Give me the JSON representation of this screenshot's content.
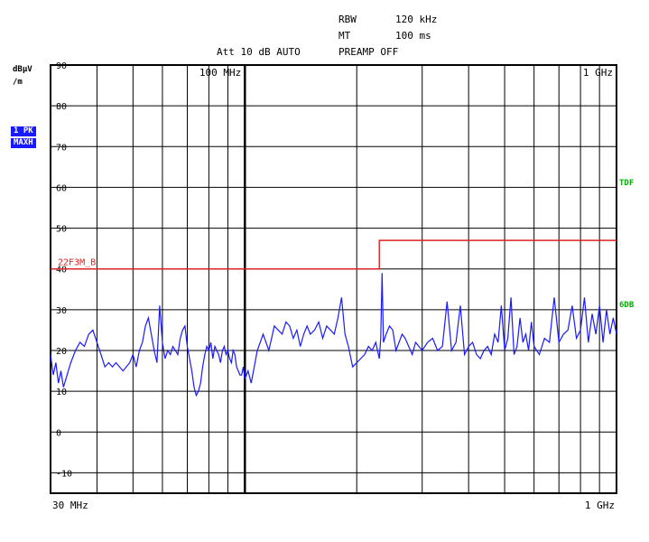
{
  "header": {
    "rbw_label": "RBW",
    "rbw_value": "120 kHz",
    "mt_label": "MT",
    "mt_value": "100 ms",
    "att_line": "Att 10 dB AUTO",
    "preamp": "PREAMP OFF"
  },
  "unit": {
    "line1": "dBµV",
    "line2": "/m"
  },
  "badges": {
    "trace": "1 PK",
    "detector": "MAXH"
  },
  "side_labels": {
    "tdf": "TDF",
    "db": "6DB"
  },
  "colors": {
    "grid": "#000000",
    "trace": "#1a1aff",
    "limit": "#e02020",
    "side": "#00b000",
    "badge_bg": "#1a1aff"
  },
  "chart_data": {
    "type": "line",
    "x_scale": "log",
    "xlim_mhz": [
      30,
      1000
    ],
    "ylim": [
      -15,
      90
    ],
    "y_ticks": [
      90,
      80,
      70,
      60,
      50,
      40,
      30,
      20,
      10,
      0,
      -10
    ],
    "y_tick_labels": [
      "90",
      "80",
      "70",
      "60",
      "50",
      "40",
      "30",
      "20",
      "10",
      "0",
      "-10"
    ],
    "x_min_label": "30 MHz",
    "x_max_label": "1 GHz",
    "top_freq_labels": [
      {
        "freq": 100,
        "text": "100 MHz"
      },
      {
        "freq": 1000,
        "text": "1 GHz"
      }
    ],
    "limit_line": {
      "name": "22F3M_B",
      "segments": [
        {
          "x": [
            30,
            230
          ],
          "y": 40
        },
        {
          "x": [
            230,
            1000
          ],
          "y": 47
        }
      ]
    },
    "series": [
      {
        "x": [
          30,
          30.5,
          31,
          31.5,
          32,
          32.5,
          33,
          34,
          35,
          36,
          37,
          38,
          39,
          40,
          41,
          42,
          43,
          44,
          45,
          46,
          47,
          48,
          49,
          50,
          51,
          52,
          53,
          54,
          55,
          56,
          57,
          58,
          59,
          60,
          61,
          62,
          63,
          64,
          65,
          66,
          67,
          68,
          69,
          70,
          71,
          72,
          73,
          74,
          75,
          76,
          77,
          78,
          79,
          80,
          81,
          82,
          83,
          84,
          85,
          86,
          87,
          88,
          89,
          90,
          91,
          92,
          93,
          94,
          95,
          96,
          97,
          98,
          99,
          100,
          102,
          104,
          106,
          108,
          110,
          112,
          114,
          116,
          118,
          120,
          123,
          126,
          129,
          132,
          135,
          138,
          141,
          144,
          147,
          150,
          154,
          158,
          162,
          166,
          170,
          174,
          178,
          182,
          186,
          190,
          195,
          200,
          205,
          210,
          215,
          220,
          225,
          230,
          232,
          234,
          236,
          240,
          245,
          250,
          255,
          260,
          265,
          270,
          276,
          282,
          288,
          294,
          300,
          310,
          320,
          330,
          340,
          350,
          360,
          370,
          380,
          390,
          400,
          410,
          420,
          430,
          440,
          450,
          460,
          470,
          480,
          490,
          500,
          510,
          520,
          530,
          540,
          550,
          560,
          570,
          580,
          590,
          600,
          620,
          640,
          660,
          680,
          700,
          720,
          740,
          760,
          780,
          800,
          820,
          840,
          860,
          880,
          900,
          920,
          940,
          960,
          980,
          1000
        ],
        "values": [
          19,
          14,
          17,
          12,
          15,
          11,
          13,
          17,
          20,
          22,
          21,
          24,
          25,
          22,
          19,
          16,
          17,
          16,
          17,
          16,
          15,
          16,
          17,
          19,
          16,
          20,
          22,
          26,
          28,
          24,
          20,
          17,
          31,
          22,
          18,
          20,
          19,
          21,
          20,
          19,
          23,
          25,
          26,
          21,
          18,
          15,
          11,
          9,
          10,
          12,
          16,
          19,
          21,
          20,
          22,
          18,
          21,
          20,
          19,
          17,
          20,
          21,
          19,
          20,
          18,
          17,
          20,
          19,
          16,
          15,
          14,
          14,
          16,
          13,
          15,
          12,
          16,
          20,
          22,
          24,
          22,
          20,
          23,
          26,
          25,
          24,
          27,
          26,
          23,
          25,
          21,
          24,
          26,
          24,
          25,
          27,
          23,
          26,
          25,
          24,
          28,
          33,
          24,
          21,
          16,
          17,
          18,
          19,
          21,
          20,
          22,
          18,
          23,
          39,
          22,
          24,
          26,
          25,
          20,
          22,
          24,
          23,
          21,
          19,
          22,
          21,
          20,
          22,
          23,
          20,
          21,
          32,
          20,
          22,
          31,
          19,
          21,
          22,
          19,
          18,
          20,
          21,
          19,
          24,
          22,
          31,
          20,
          23,
          33,
          19,
          21,
          28,
          22,
          24,
          20,
          27,
          21,
          19,
          23,
          22,
          33,
          22,
          24,
          25,
          31,
          23,
          25,
          33,
          22,
          29,
          24,
          31,
          22,
          30,
          24,
          28,
          24
        ]
      }
    ]
  }
}
